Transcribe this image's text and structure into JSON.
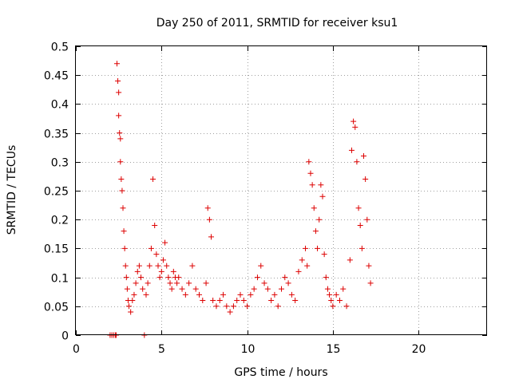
{
  "chart_data": {
    "type": "scatter",
    "title": "Day 250 of 2011, SRMTID for receiver ksu1",
    "xlabel": "GPS time / hours",
    "ylabel": "SRMTID / TECUs",
    "xlim": [
      0,
      24
    ],
    "ylim": [
      0,
      0.5
    ],
    "xticks": [
      0,
      5,
      10,
      15,
      20
    ],
    "xtick_labels": [
      "0",
      "5",
      "10",
      "15",
      "20"
    ],
    "yticks": [
      0,
      0.05,
      0.1,
      0.15,
      0.2,
      0.25,
      0.3,
      0.35,
      0.4,
      0.45,
      0.5
    ],
    "ytick_labels": [
      "0",
      "0.05",
      "0.1",
      "0.15",
      "0.2",
      "0.25",
      "0.3",
      "0.35",
      "0.4",
      "0.45",
      "0.5"
    ],
    "grid": true,
    "marker": "+",
    "marker_color": "#dd0000",
    "series": [
      {
        "name": "SRMTID",
        "x": [
          2.0,
          2.1,
          2.2,
          2.3,
          2.35,
          2.4,
          2.45,
          2.5,
          2.5,
          2.55,
          2.6,
          2.6,
          2.65,
          2.7,
          2.75,
          2.8,
          2.85,
          2.9,
          2.95,
          3.0,
          3.05,
          3.1,
          3.2,
          3.3,
          3.4,
          3.5,
          3.6,
          3.7,
          3.8,
          3.9,
          4.0,
          4.1,
          4.2,
          4.3,
          4.4,
          4.5,
          4.6,
          4.7,
          4.8,
          4.9,
          5.0,
          5.1,
          5.2,
          5.3,
          5.4,
          5.5,
          5.6,
          5.7,
          5.8,
          5.9,
          6.0,
          6.2,
          6.4,
          6.6,
          6.8,
          7.0,
          7.2,
          7.4,
          7.6,
          7.7,
          7.8,
          7.9,
          8.0,
          8.2,
          8.4,
          8.6,
          8.8,
          9.0,
          9.2,
          9.4,
          9.6,
          9.8,
          10.0,
          10.2,
          10.4,
          10.6,
          10.8,
          11.0,
          11.2,
          11.4,
          11.6,
          11.8,
          12.0,
          12.2,
          12.4,
          12.6,
          12.8,
          13.0,
          13.2,
          13.4,
          13.5,
          13.6,
          13.7,
          13.8,
          13.9,
          14.0,
          14.1,
          14.2,
          14.3,
          14.4,
          14.5,
          14.6,
          14.7,
          14.8,
          14.9,
          15.0,
          15.2,
          15.4,
          15.6,
          15.8,
          16.0,
          16.1,
          16.2,
          16.3,
          16.4,
          16.5,
          16.6,
          16.7,
          16.8,
          16.9,
          17.0,
          17.1,
          17.2
        ],
        "y": [
          0.0,
          0.0,
          0.0,
          0.0,
          0.0,
          0.47,
          0.44,
          0.42,
          0.38,
          0.35,
          0.34,
          0.3,
          0.27,
          0.25,
          0.22,
          0.18,
          0.15,
          0.12,
          0.1,
          0.08,
          0.06,
          0.05,
          0.04,
          0.06,
          0.07,
          0.09,
          0.11,
          0.12,
          0.1,
          0.08,
          0.0,
          0.07,
          0.09,
          0.12,
          0.15,
          0.27,
          0.19,
          0.14,
          0.12,
          0.1,
          0.11,
          0.13,
          0.16,
          0.12,
          0.1,
          0.09,
          0.08,
          0.11,
          0.1,
          0.09,
          0.1,
          0.08,
          0.07,
          0.09,
          0.12,
          0.08,
          0.07,
          0.06,
          0.09,
          0.22,
          0.2,
          0.17,
          0.06,
          0.05,
          0.06,
          0.07,
          0.05,
          0.04,
          0.05,
          0.06,
          0.07,
          0.06,
          0.05,
          0.07,
          0.08,
          0.1,
          0.12,
          0.09,
          0.08,
          0.06,
          0.07,
          0.05,
          0.08,
          0.1,
          0.09,
          0.07,
          0.06,
          0.11,
          0.13,
          0.15,
          0.12,
          0.3,
          0.28,
          0.26,
          0.22,
          0.18,
          0.15,
          0.2,
          0.26,
          0.24,
          0.14,
          0.1,
          0.08,
          0.07,
          0.06,
          0.05,
          0.07,
          0.06,
          0.08,
          0.05,
          0.13,
          0.32,
          0.37,
          0.36,
          0.3,
          0.22,
          0.19,
          0.15,
          0.31,
          0.27,
          0.2,
          0.12,
          0.09
        ]
      }
    ]
  }
}
